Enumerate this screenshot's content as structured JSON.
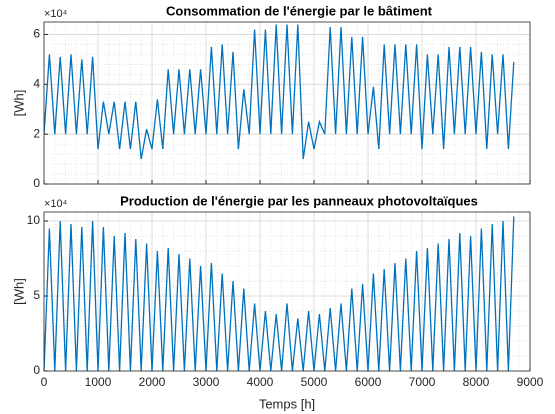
{
  "chart_data": [
    {
      "type": "line",
      "title": "Consommation de l'énergie par le bâtiment",
      "ylabel": "[Wh]",
      "exponent_label": "×10⁴",
      "x": [
        0,
        100,
        200,
        300,
        400,
        500,
        600,
        700,
        800,
        900,
        1000,
        1100,
        1200,
        1300,
        1400,
        1500,
        1600,
        1700,
        1800,
        1900,
        2000,
        2100,
        2200,
        2300,
        2400,
        2500,
        2600,
        2700,
        2800,
        2900,
        3000,
        3100,
        3200,
        3300,
        3400,
        3500,
        3600,
        3700,
        3800,
        3900,
        4000,
        4100,
        4200,
        4300,
        4400,
        4500,
        4600,
        4700,
        4800,
        4900,
        5000,
        5100,
        5200,
        5300,
        5400,
        5500,
        5600,
        5700,
        5800,
        5900,
        6000,
        6100,
        6200,
        6300,
        6400,
        6500,
        6600,
        6700,
        6800,
        6900,
        7000,
        7100,
        7200,
        7300,
        7400,
        7500,
        7600,
        7700,
        7800,
        7900,
        8000,
        8100,
        8200,
        8300,
        8400,
        8500,
        8600,
        8700
      ],
      "values": [
        20000,
        52000,
        20000,
        51000,
        20000,
        52000,
        20000,
        50000,
        20000,
        51000,
        14000,
        33000,
        20000,
        33000,
        14000,
        33000,
        14000,
        33000,
        10000,
        22000,
        14000,
        34000,
        14000,
        46000,
        20000,
        46000,
        20000,
        46000,
        20000,
        46000,
        20000,
        55000,
        20000,
        56000,
        20000,
        53000,
        14000,
        38000,
        20000,
        62000,
        20000,
        62000,
        20000,
        64000,
        20000,
        64000,
        20000,
        64000,
        10000,
        25000,
        14000,
        25000,
        20000,
        63000,
        20000,
        63000,
        20000,
        59000,
        20000,
        59000,
        20000,
        39000,
        14000,
        56000,
        20000,
        56000,
        20000,
        56000,
        20000,
        56000,
        14000,
        52000,
        20000,
        52000,
        14000,
        55000,
        20000,
        55000,
        20000,
        55000,
        20000,
        53000,
        14000,
        52000,
        20000,
        52000,
        14000,
        49000
      ],
      "color": "#0072bd",
      "xlim": [
        0,
        9000
      ],
      "xticks": [
        0,
        1000,
        2000,
        3000,
        4000,
        5000,
        6000,
        7000,
        8000,
        9000
      ],
      "ylim": [
        0,
        65000
      ],
      "yticks": [
        {
          "value": 0,
          "label": "0"
        },
        {
          "value": 20000,
          "label": "2"
        },
        {
          "value": 40000,
          "label": "4"
        },
        {
          "value": 60000,
          "label": "6"
        }
      ],
      "grid": true
    },
    {
      "type": "line",
      "title": "Production de l'énergie par les panneaux photovoltaïques",
      "ylabel": "[Wh]",
      "xlabel": "Temps [h]",
      "exponent_label": "×10⁴",
      "x": [
        0,
        100,
        200,
        300,
        400,
        500,
        600,
        700,
        800,
        900,
        1000,
        1100,
        1200,
        1300,
        1400,
        1500,
        1600,
        1700,
        1800,
        1900,
        2000,
        2100,
        2200,
        2300,
        2400,
        2500,
        2600,
        2700,
        2800,
        2900,
        3000,
        3100,
        3200,
        3300,
        3400,
        3500,
        3600,
        3700,
        3800,
        3900,
        4000,
        4100,
        4200,
        4300,
        4400,
        4500,
        4600,
        4700,
        4800,
        4900,
        5000,
        5100,
        5200,
        5300,
        5400,
        5500,
        5600,
        5700,
        5800,
        5900,
        6000,
        6100,
        6200,
        6300,
        6400,
        6500,
        6600,
        6700,
        6800,
        6900,
        7000,
        7100,
        7200,
        7300,
        7400,
        7500,
        7600,
        7700,
        7800,
        7900,
        8000,
        8100,
        8200,
        8300,
        8400,
        8500,
        8600,
        8700
      ],
      "values": [
        0,
        95000,
        0,
        100000,
        0,
        98000,
        0,
        96000,
        0,
        100000,
        0,
        96000,
        0,
        90000,
        0,
        92000,
        0,
        88000,
        0,
        85000,
        0,
        80000,
        0,
        82000,
        0,
        78000,
        0,
        75000,
        0,
        70000,
        0,
        72000,
        0,
        65000,
        0,
        60000,
        0,
        55000,
        0,
        45000,
        0,
        40000,
        0,
        38000,
        0,
        45000,
        0,
        35000,
        0,
        40000,
        0,
        38000,
        0,
        42000,
        0,
        45000,
        0,
        55000,
        0,
        58000,
        0,
        65000,
        0,
        68000,
        0,
        72000,
        0,
        75000,
        0,
        80000,
        0,
        82000,
        0,
        85000,
        0,
        88000,
        0,
        92000,
        0,
        90000,
        0,
        95000,
        0,
        98000,
        0,
        100000,
        0,
        103000
      ],
      "color": "#0072bd",
      "xlim": [
        0,
        9000
      ],
      "xticks": [
        0,
        1000,
        2000,
        3000,
        4000,
        5000,
        6000,
        7000,
        8000,
        9000
      ],
      "ylim": [
        0,
        106000
      ],
      "yticks": [
        {
          "value": 0,
          "label": "0"
        },
        {
          "value": 50000,
          "label": "5"
        },
        {
          "value": 100000,
          "label": "10"
        }
      ],
      "grid": true
    }
  ]
}
